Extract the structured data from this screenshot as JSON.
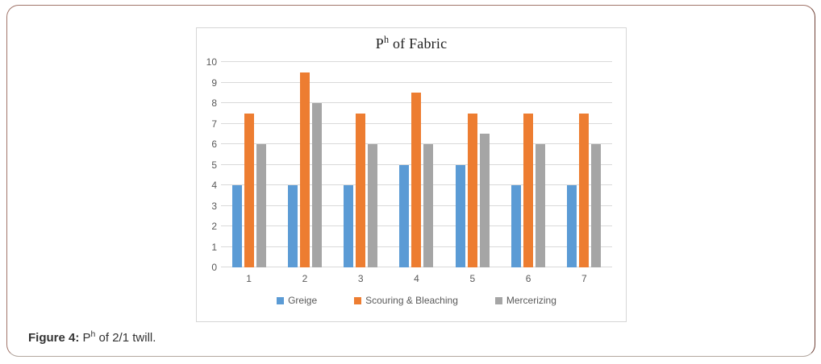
{
  "figure": {
    "caption": {
      "prefix": "Figure 4:",
      "p": " P",
      "sup": "h",
      "rest": " of 2/1 twill."
    }
  },
  "chart": {
    "title": {
      "p": "P",
      "sup": "h",
      "rest": " of Fabric"
    }
  },
  "chart_data": {
    "type": "bar",
    "title": "Ph of Fabric",
    "categories": [
      "1",
      "2",
      "3",
      "4",
      "5",
      "6",
      "7"
    ],
    "series": [
      {
        "name": "Greige",
        "color": "#5b9bd5",
        "values": [
          4,
          4,
          4,
          5,
          5,
          4,
          4
        ]
      },
      {
        "name": "Scouring & Bleaching",
        "color": "#ed7d31",
        "values": [
          7.5,
          9.5,
          7.5,
          8.5,
          7.5,
          7.5,
          7.5
        ]
      },
      {
        "name": "Mercerizing",
        "color": "#a5a5a5",
        "values": [
          6,
          8,
          6,
          6,
          6.5,
          6,
          6
        ]
      }
    ],
    "xlabel": "",
    "ylabel": "",
    "ylim": [
      0,
      10
    ],
    "yticks": [
      0,
      1,
      2,
      3,
      4,
      5,
      6,
      7,
      8,
      9,
      10
    ],
    "grid": true,
    "legend_position": "bottom",
    "gridline_color": "#d9d9d9",
    "tick_color": "#595959"
  }
}
